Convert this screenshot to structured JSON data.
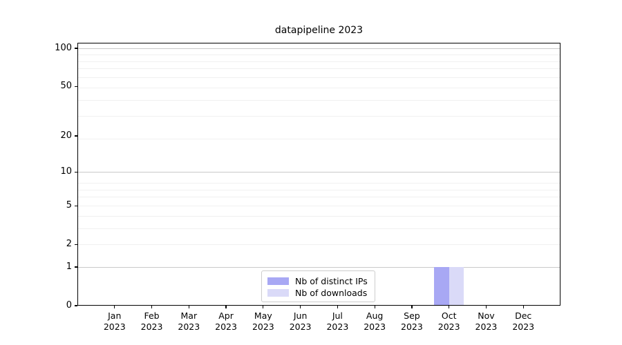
{
  "chart_data": {
    "type": "bar",
    "title": "datapipeline 2023",
    "categories": [
      "Jan",
      "Feb",
      "Mar",
      "Apr",
      "May",
      "Jun",
      "Jul",
      "Aug",
      "Sep",
      "Oct",
      "Nov",
      "Dec"
    ],
    "x_tick_year": "2023",
    "series": [
      {
        "name": "Nb of distinct IPs",
        "color": "#a8a8f4",
        "values": [
          0,
          0,
          0,
          0,
          0,
          0,
          0,
          0,
          0,
          1,
          0,
          0
        ]
      },
      {
        "name": "Nb of downloads",
        "color": "#dadaf8",
        "values": [
          0,
          0,
          0,
          0,
          0,
          0,
          0,
          0,
          0,
          1,
          0,
          0
        ]
      }
    ],
    "xlabel": "",
    "ylabel": "",
    "y_axis": {
      "scale": "log1p",
      "ticks": [
        0,
        1,
        2,
        5,
        10,
        20,
        50,
        100
      ],
      "major_gridlines": [
        1,
        10,
        100
      ],
      "minor_gridlines": [
        2,
        3,
        4,
        5,
        6,
        7,
        8,
        19,
        29,
        39,
        49,
        59,
        69,
        79,
        89
      ],
      "ylim": [
        0,
        110
      ]
    },
    "grid": true,
    "legend_position": "lower-center"
  },
  "colors": {
    "major_grid": "#c8c8c8",
    "minor_grid": "#f0f0f0",
    "spine": "#000000",
    "background": "#ffffff"
  }
}
